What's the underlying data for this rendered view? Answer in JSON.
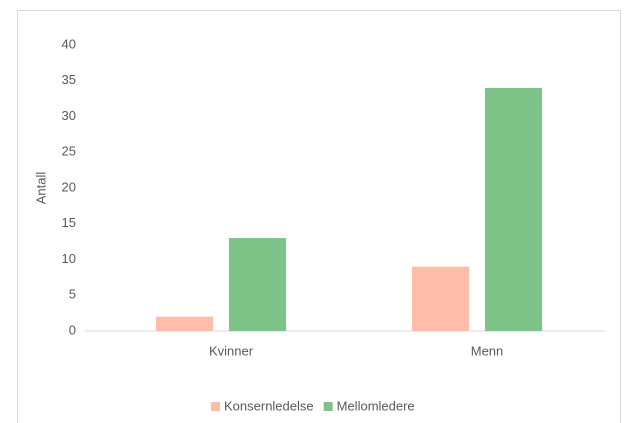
{
  "chart_data": {
    "type": "bar",
    "y_label": "Antall",
    "categories": [
      "Kvinner",
      "Menn"
    ],
    "series": [
      {
        "name": "Konsernledelse",
        "color": "#ffbca9",
        "values": [
          2,
          9
        ]
      },
      {
        "name": "Mellomledere",
        "color": "#7dc388",
        "values": [
          13,
          34
        ]
      }
    ],
    "ylim": [
      0,
      40
    ],
    "yticks": [
      0,
      5,
      10,
      15,
      20,
      25,
      30,
      35,
      40
    ],
    "grid": false,
    "legend": "bottom"
  }
}
